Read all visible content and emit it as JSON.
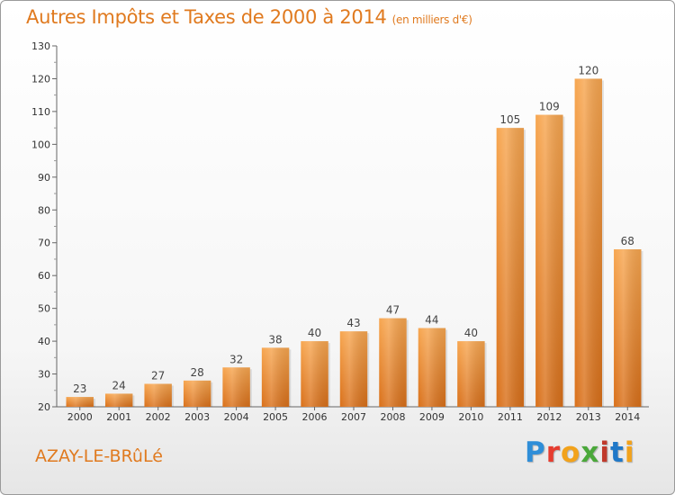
{
  "chart_data": {
    "type": "bar",
    "title": "Autres Impôts et Taxes de 2000 à 2014",
    "subtitle": "(en milliers d'€)",
    "categories": [
      "2000",
      "2001",
      "2002",
      "2003",
      "2004",
      "2005",
      "2006",
      "2007",
      "2008",
      "2009",
      "2010",
      "2011",
      "2012",
      "2013",
      "2014"
    ],
    "values": [
      23,
      24,
      27,
      28,
      32,
      38,
      40,
      43,
      47,
      44,
      40,
      105,
      109,
      120,
      68
    ],
    "data_labels": [
      "23",
      "24",
      "27",
      "28",
      "32",
      "38",
      "40",
      "43",
      "47",
      "44",
      "40",
      "105",
      "109",
      "120",
      "68"
    ],
    "xlabel": "",
    "ylabel": "",
    "ylim": [
      20,
      130
    ],
    "yticks": [
      20,
      30,
      40,
      50,
      60,
      70,
      80,
      90,
      100,
      110,
      120,
      130
    ],
    "ytick_labels": [
      "20",
      "30",
      "40",
      "50",
      "60",
      "70",
      "80",
      "90",
      "100",
      "110",
      "120",
      "130"
    ],
    "grid": false,
    "bar_color": "#f0902f"
  },
  "footer": {
    "commune": "AZAY-LE-BRûLé",
    "logo_parts": [
      "P",
      "r",
      "o",
      "x",
      "i",
      "t",
      "i"
    ]
  }
}
